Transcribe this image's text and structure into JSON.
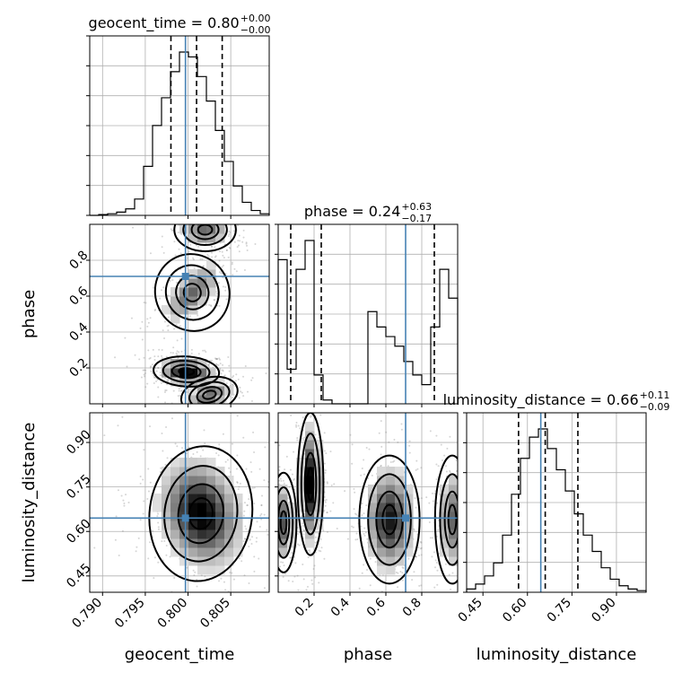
{
  "chart_data": {
    "type": "corner",
    "parameters": [
      "geocent_time",
      "phase",
      "luminosity_distance"
    ],
    "truths": {
      "geocent_time": 0.7997,
      "phase": 0.71,
      "luminosity_distance": 0.645
    },
    "titles": [
      {
        "param": "geocent_time",
        "text": "geocent_time = 0.80",
        "sup": "+0.00",
        "sub": "−0.00"
      },
      {
        "param": "phase",
        "text": "phase = 0.24",
        "sup": "+0.63",
        "sub": "−0.17"
      },
      {
        "param": "luminosity_distance",
        "text": "luminosity_distance = 0.66",
        "sup": "+0.11",
        "sub": "−0.09"
      }
    ],
    "axes": {
      "geocent_time": {
        "range": [
          0.7885,
          0.8095
        ],
        "ticks": [
          "0.790",
          "0.795",
          "0.800",
          "0.805"
        ],
        "tick_values": [
          0.79,
          0.795,
          0.8,
          0.805
        ]
      },
      "phase": {
        "range": [
          0.0,
          1.0
        ],
        "ticks": [
          "0.2",
          "0.4",
          "0.6",
          "0.8"
        ],
        "tick_values": [
          0.2,
          0.4,
          0.6,
          0.8
        ]
      },
      "luminosity_distance": {
        "range": [
          0.395,
          1.0
        ],
        "ticks": [
          "0.45",
          "0.60",
          "0.75",
          "0.90"
        ],
        "tick_values": [
          0.45,
          0.6,
          0.75,
          0.9
        ]
      }
    },
    "quantiles": {
      "geocent_time": [
        0.798,
        0.801,
        0.804
      ],
      "phase": [
        0.07,
        0.24,
        0.87
      ],
      "luminosity_distance": [
        0.57,
        0.66,
        0.77
      ]
    },
    "histograms": {
      "geocent_time": {
        "edges_start": 0.7885,
        "bin_width": 0.00105,
        "counts": [
          0,
          0.5,
          1,
          2,
          4,
          10,
          30,
          55,
          72,
          88,
          100,
          97,
          85,
          70,
          52,
          33,
          18,
          8,
          3,
          1
        ]
      },
      "phase": {
        "edges_start": 0.0,
        "bin_width": 0.05,
        "counts": [
          75,
          18,
          70,
          85,
          15,
          2,
          0,
          0,
          0,
          0,
          48,
          40,
          35,
          30,
          22,
          15,
          10,
          40,
          70,
          55
        ]
      },
      "luminosity_distance": {
        "edges_start": 0.395,
        "bin_width": 0.03025,
        "counts": [
          2,
          5,
          10,
          18,
          35,
          60,
          82,
          95,
          100,
          88,
          75,
          62,
          48,
          35,
          25,
          15,
          8,
          4,
          2,
          1
        ]
      }
    },
    "grid": true
  },
  "labels": {
    "x": [
      "geocent_time",
      "phase",
      "luminosity_distance"
    ],
    "y": [
      "phase",
      "luminosity_distance"
    ]
  }
}
